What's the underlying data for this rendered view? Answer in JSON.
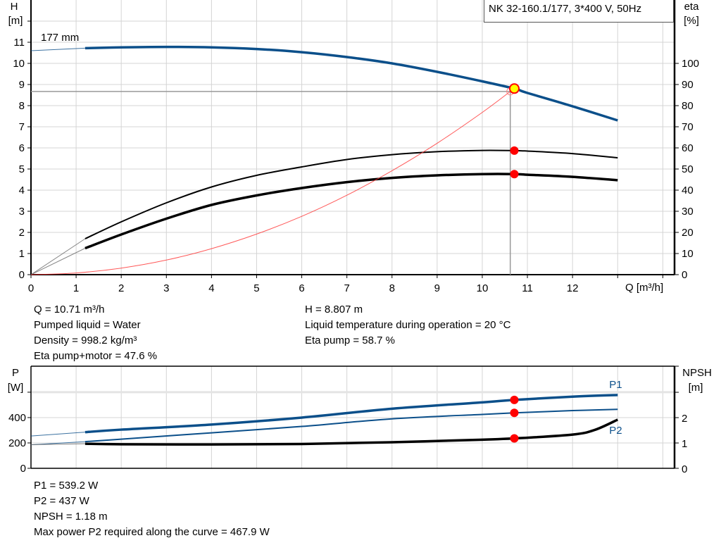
{
  "chart_data": [
    {
      "type": "line",
      "title": "NK 32-160.1/177, 3*400 V, 50Hz",
      "xlabel": "Q [m³/h]",
      "ylabel": "H\n[m]",
      "ylabel_lines": [
        "H",
        "[m]"
      ],
      "y2label_lines": [
        "eta",
        "[%]"
      ],
      "xlim": [
        0,
        14.26
      ],
      "ylim": [
        0,
        13
      ],
      "y2lim": [
        0,
        130
      ],
      "grid": true,
      "x_ticks": [
        "0",
        "1",
        "2",
        "3",
        "4",
        "5",
        "6",
        "7",
        "8",
        "9",
        "10",
        "11",
        "12"
      ],
      "y_ticks": [
        "0",
        "1",
        "2",
        "3",
        "4",
        "5",
        "6",
        "7",
        "8",
        "9",
        "10",
        "11"
      ],
      "y2_ticks": [
        "0",
        "10",
        "20",
        "30",
        "40",
        "50",
        "60",
        "70",
        "80",
        "90",
        "100"
      ],
      "curve_label": "177 mm",
      "series": [
        {
          "key": "H",
          "axis": "left",
          "color": "#0b4f8a",
          "x": [
            1.2,
            2,
            3,
            4,
            5,
            6,
            7,
            8,
            9,
            10,
            10.71,
            11,
            12,
            13
          ],
          "y": [
            10.72,
            10.76,
            10.78,
            10.76,
            10.68,
            10.53,
            10.3,
            10.0,
            9.6,
            9.15,
            8.807,
            8.6,
            7.97,
            7.3
          ],
          "extension": {
            "x": [
              0,
              1.2
            ],
            "y": [
              10.6,
              10.72
            ]
          }
        },
        {
          "key": "eta_pump",
          "axis": "right",
          "color": "#000000",
          "x": [
            1.2,
            2,
            3,
            4,
            5,
            6,
            7,
            8,
            9,
            10,
            10.71,
            11,
            12,
            13
          ],
          "y": [
            17,
            25,
            34,
            41.5,
            47,
            51,
            54.5,
            56.8,
            58.2,
            58.8,
            58.7,
            58.5,
            57.3,
            55.3
          ],
          "extension": {
            "x": [
              0,
              1.2
            ],
            "y": [
              0,
              17
            ]
          }
        },
        {
          "key": "eta_pump_motor",
          "axis": "right",
          "color": "#000000",
          "x": [
            1.2,
            2,
            3,
            4,
            5,
            6,
            7,
            8,
            9,
            10,
            10.71,
            11,
            12,
            13
          ],
          "y": [
            12.5,
            19,
            26.5,
            33,
            37.5,
            41,
            43.8,
            45.8,
            47,
            47.6,
            47.6,
            47.3,
            46.3,
            44.7
          ],
          "extension": {
            "x": [
              0,
              1.2
            ],
            "y": [
              0,
              12.5
            ]
          }
        },
        {
          "key": "system_curve",
          "axis": "left",
          "color": "#ff3030",
          "x": [
            0,
            1,
            2,
            3,
            4,
            5,
            6,
            7,
            8,
            9,
            10,
            10.62
          ],
          "y": [
            0,
            0.08,
            0.31,
            0.69,
            1.23,
            1.92,
            2.76,
            3.76,
            4.92,
            6.22,
            7.68,
            8.67
          ]
        }
      ],
      "duty_point": {
        "Q": 10.71,
        "H": 8.807,
        "eta_pump": 58.7,
        "eta_pump_motor": 47.6
      },
      "requested_point": {
        "Q": 10.62,
        "H": 8.67
      }
    },
    {
      "type": "line",
      "ylabel_lines": [
        "P",
        "[W]"
      ],
      "y2label_lines": [
        "NPSH",
        "[m]"
      ],
      "xlim": [
        0,
        14.26
      ],
      "ylim": [
        0,
        805
      ],
      "y2lim": [
        0,
        4.03
      ],
      "grid": true,
      "y_ticks": [
        "0",
        "200",
        "400"
      ],
      "y2_ticks": [
        "0",
        "1",
        "2"
      ],
      "series": [
        {
          "name": "P1",
          "axis": "left",
          "color": "#0b4f8a",
          "x": [
            1.2,
            2,
            4,
            6,
            8,
            10,
            10.71,
            12,
            13
          ],
          "y": [
            285,
            305,
            345,
            400,
            470,
            520,
            539.2,
            565,
            578
          ],
          "extension": {
            "x": [
              0,
              1.2
            ],
            "y": [
              255,
              285
            ]
          }
        },
        {
          "name": "P2",
          "axis": "left",
          "color": "#0b4f8a",
          "x": [
            1.2,
            2,
            4,
            6,
            8,
            10,
            10.71,
            12,
            13
          ],
          "y": [
            210,
            230,
            280,
            330,
            390,
            425,
            437,
            455,
            465
          ],
          "extension": {
            "x": [
              0,
              1.2
            ],
            "y": [
              185,
              210
            ]
          }
        },
        {
          "key": "NPSH",
          "axis": "right",
          "color": "#000000",
          "x": [
            1.2,
            2,
            4,
            6,
            8,
            10,
            10.71,
            12,
            12.5,
            13
          ],
          "y": [
            0.97,
            0.95,
            0.94,
            0.96,
            1.03,
            1.13,
            1.18,
            1.33,
            1.52,
            1.92
          ],
          "extension": {
            "x": [
              0,
              1.2
            ],
            "y": [
              0.93,
              0.97
            ]
          }
        }
      ],
      "duty_point": {
        "Q": 10.71,
        "P1": 539.2,
        "P2": 437,
        "NPSH": 1.18
      }
    }
  ],
  "info_top": {
    "left": [
      "Q = 10.71 m³/h",
      "Pumped liquid = Water",
      "Density = 998.2 kg/m³",
      "Eta pump+motor = 47.6 %"
    ],
    "right": [
      "H = 8.807 m",
      "Liquid temperature during operation = 20 °C",
      "Eta pump = 58.7 %"
    ]
  },
  "info_bottom": [
    "P1 = 539.2 W",
    "P2 = 437 W",
    "NPSH = 1.18 m",
    "Max power P2 required along the curve = 467.9 W"
  ],
  "colors": {
    "blue": "#0b4f8a",
    "marker_red": "#ff0000",
    "marker_yellow": "#ffff00",
    "grid": "#d0d0d0"
  }
}
